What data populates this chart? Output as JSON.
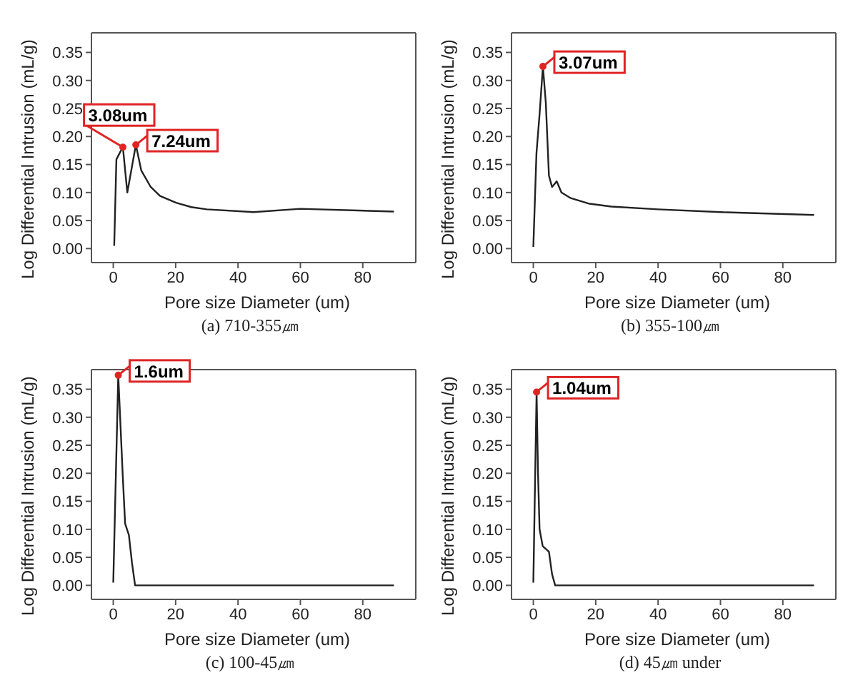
{
  "chart_data": [
    {
      "type": "line",
      "title": "(a) 710-355㎛",
      "xlabel": "Pore size Diameter (um)",
      "ylabel": "Log Differential Intrusion (mL/g)",
      "xlim": [
        -7,
        97
      ],
      "xticks": [
        0,
        20,
        40,
        60,
        80
      ],
      "ylim": [
        -0.025,
        0.385
      ],
      "yticks": [
        {
          "value": 0,
          "label": "0.00"
        },
        {
          "value": 0.05,
          "label": "0.05"
        },
        {
          "value": 0.1,
          "label": "0.10"
        },
        {
          "value": 0.15,
          "label": "0.15"
        },
        {
          "value": 0.2,
          "label": "0.20"
        },
        {
          "value": 0.25,
          "label": "0.25"
        },
        {
          "value": 0.3,
          "label": "0.30"
        },
        {
          "value": 0.35,
          "label": "0.35"
        }
      ],
      "marker": "none",
      "series": [
        {
          "color": "#222222",
          "x": [
            0.3,
            1,
            2,
            3.08,
            4.5,
            7.24,
            9,
            12,
            15,
            20,
            25,
            30,
            45,
            60,
            90
          ],
          "values": [
            0.005,
            0.159,
            0.17,
            0.181,
            0.1,
            0.185,
            0.139,
            0.11,
            0.094,
            0.082,
            0.074,
            0.07,
            0.065,
            0.071,
            0.066
          ]
        }
      ],
      "annotations": [
        {
          "text": "3.08um",
          "x": 3.08,
          "y": 0.181
        },
        {
          "text": "7.24um",
          "x": 7.24,
          "y": 0.185
        }
      ]
    },
    {
      "type": "line",
      "title": "(b) 355-100㎛",
      "xlabel": "Pore size Diameter (um)",
      "ylabel": "Log Differential Intrusion (mL/g)",
      "xlim": [
        -7,
        97
      ],
      "xticks": [
        0,
        20,
        40,
        60,
        80
      ],
      "ylim": [
        -0.025,
        0.385
      ],
      "yticks": [
        {
          "value": 0,
          "label": "0.00"
        },
        {
          "value": 0.05,
          "label": "0.05"
        },
        {
          "value": 0.1,
          "label": "0.10"
        },
        {
          "value": 0.15,
          "label": "0.15"
        },
        {
          "value": 0.2,
          "label": "0.20"
        },
        {
          "value": 0.25,
          "label": "0.25"
        },
        {
          "value": 0.3,
          "label": "0.30"
        },
        {
          "value": 0.35,
          "label": "0.35"
        }
      ],
      "marker": "none",
      "series": [
        {
          "color": "#222222",
          "x": [
            0,
            1,
            2,
            3.07,
            4,
            5,
            6,
            7.5,
            9,
            12,
            15,
            18,
            25,
            40,
            60,
            90
          ],
          "values": [
            0.003,
            0.17,
            0.24,
            0.325,
            0.26,
            0.13,
            0.11,
            0.12,
            0.1,
            0.09,
            0.085,
            0.08,
            0.075,
            0.07,
            0.065,
            0.06
          ]
        }
      ],
      "annotations": [
        {
          "text": "3.07um",
          "x": 3.07,
          "y": 0.325
        }
      ]
    },
    {
      "type": "line",
      "title": "(c) 100-45㎛",
      "xlabel": "Pore size Diameter (um)",
      "ylabel": "Log Differential Intrusion (mL/g)",
      "xlim": [
        -7,
        97
      ],
      "xticks": [
        0,
        20,
        40,
        60,
        80
      ],
      "ylim": [
        -0.025,
        0.385
      ],
      "yticks": [
        {
          "value": 0,
          "label": "0.00"
        },
        {
          "value": 0.05,
          "label": "0.05"
        },
        {
          "value": 0.1,
          "label": "0.10"
        },
        {
          "value": 0.15,
          "label": "0.15"
        },
        {
          "value": 0.2,
          "label": "0.20"
        },
        {
          "value": 0.25,
          "label": "0.25"
        },
        {
          "value": 0.3,
          "label": "0.30"
        },
        {
          "value": 0.35,
          "label": "0.35"
        }
      ],
      "marker": "none",
      "series": [
        {
          "color": "#222222",
          "x": [
            0,
            1.6,
            3,
            3.8,
            5,
            6,
            7,
            90
          ],
          "values": [
            0.005,
            0.375,
            0.2,
            0.11,
            0.09,
            0.04,
            0,
            0
          ]
        }
      ],
      "annotations": [
        {
          "text": "1.6um",
          "x": 1.6,
          "y": 0.375
        }
      ]
    },
    {
      "type": "line",
      "title": "(d) 45㎛ under",
      "xlabel": "Pore size Diameter (um)",
      "ylabel": "Log Differential Intrusion (mL/g)",
      "xlim": [
        -7,
        97
      ],
      "xticks": [
        0,
        20,
        40,
        60,
        80
      ],
      "ylim": [
        -0.025,
        0.385
      ],
      "yticks": [
        {
          "value": 0,
          "label": "0.00"
        },
        {
          "value": 0.05,
          "label": "0.05"
        },
        {
          "value": 0.1,
          "label": "0.10"
        },
        {
          "value": 0.15,
          "label": "0.15"
        },
        {
          "value": 0.2,
          "label": "0.20"
        },
        {
          "value": 0.25,
          "label": "0.25"
        },
        {
          "value": 0.3,
          "label": "0.30"
        },
        {
          "value": 0.35,
          "label": "0.35"
        }
      ],
      "marker": "none",
      "series": [
        {
          "color": "#222222",
          "x": [
            0,
            1.04,
            1.5,
            2,
            3,
            5,
            6,
            7,
            90
          ],
          "values": [
            0.005,
            0.345,
            0.2,
            0.1,
            0.07,
            0.06,
            0.02,
            0,
            0
          ]
        }
      ],
      "annotations": [
        {
          "text": "1.04um",
          "x": 1.04,
          "y": 0.345
        }
      ]
    }
  ]
}
